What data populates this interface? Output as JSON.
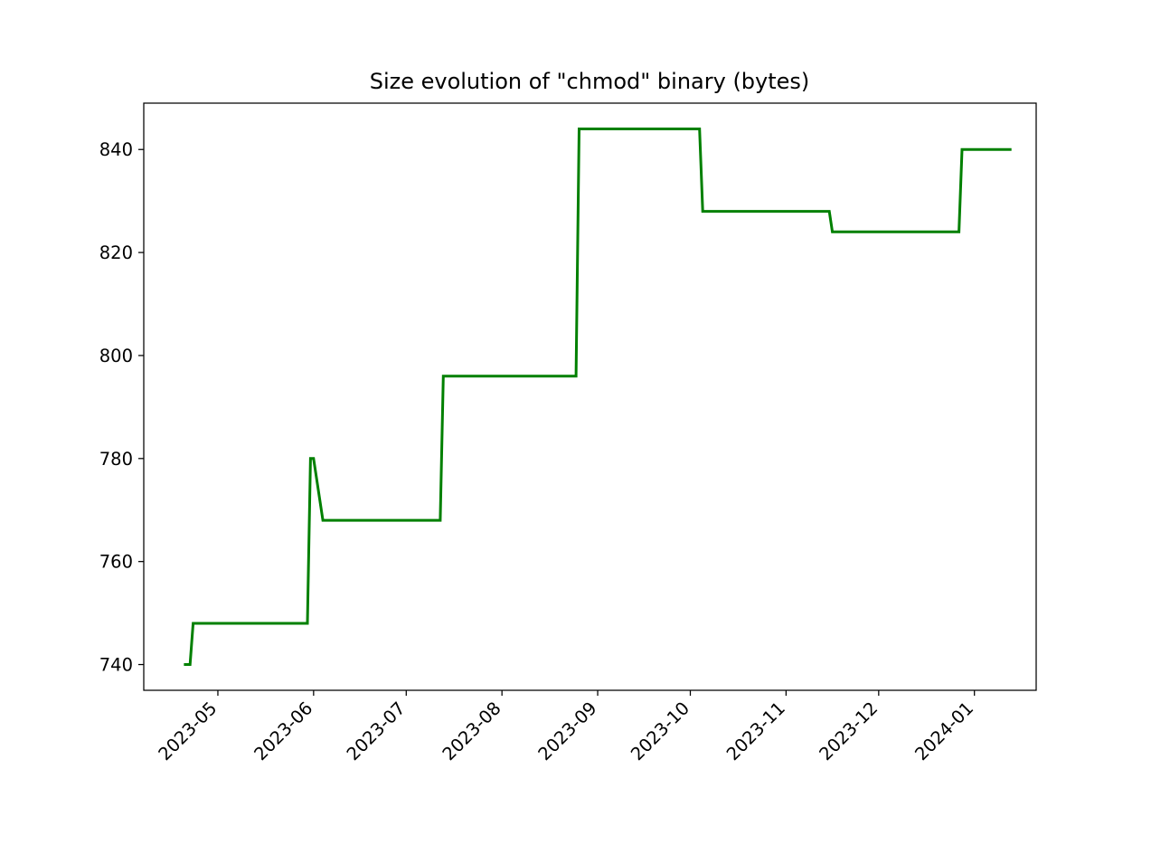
{
  "chart_data": {
    "type": "line",
    "title": "Size evolution of \"chmod\" binary (bytes)",
    "xlabel": "",
    "ylabel": "",
    "grid": false,
    "legend": "none",
    "line_color": "#008000",
    "xlim": [
      "2023-04-07",
      "2024-01-21"
    ],
    "ylim": [
      735,
      849
    ],
    "yticks": [
      740,
      760,
      780,
      800,
      820,
      840
    ],
    "xticks": [
      "2023-05-01",
      "2023-06-01",
      "2023-07-01",
      "2023-08-01",
      "2023-09-01",
      "2023-10-01",
      "2023-11-01",
      "2023-12-01",
      "2024-01-01"
    ],
    "xtick_labels": [
      "2023-05",
      "2023-06",
      "2023-07",
      "2023-08",
      "2023-09",
      "2023-10",
      "2023-11",
      "2023-12",
      "2024-01"
    ],
    "series": [
      {
        "points": [
          [
            "2023-04-20",
            740
          ],
          [
            "2023-04-22",
            740
          ],
          [
            "2023-04-23",
            748
          ],
          [
            "2023-05-30",
            748
          ],
          [
            "2023-05-31",
            780
          ],
          [
            "2023-06-01",
            780
          ],
          [
            "2023-06-04",
            768
          ],
          [
            "2023-07-12",
            768
          ],
          [
            "2023-07-13",
            796
          ],
          [
            "2023-08-25",
            796
          ],
          [
            "2023-08-26",
            844
          ],
          [
            "2023-10-04",
            844
          ],
          [
            "2023-10-05",
            828
          ],
          [
            "2023-11-15",
            828
          ],
          [
            "2023-11-16",
            824
          ],
          [
            "2023-12-27",
            824
          ],
          [
            "2023-12-28",
            840
          ],
          [
            "2024-01-13",
            840
          ]
        ]
      }
    ]
  }
}
